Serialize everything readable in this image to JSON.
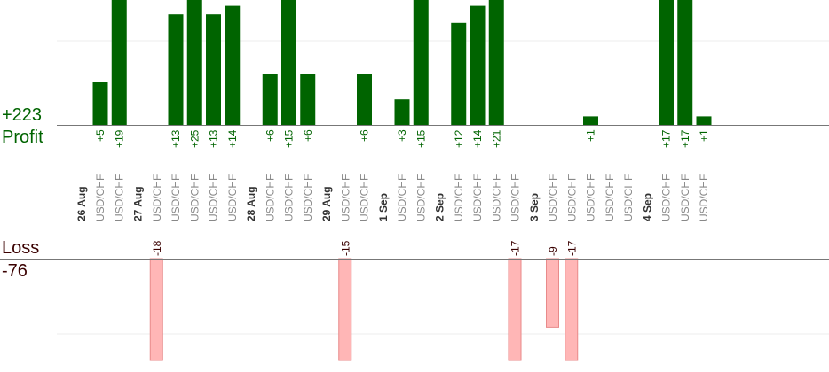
{
  "labels": {
    "profit_total": "+223",
    "profit_label": "Profit",
    "loss_label": "Loss",
    "loss_total": "-76"
  },
  "colors": {
    "profit_bar": "#006400",
    "loss_bar": "#ffb6b6",
    "axis": "#777777",
    "gridline": "#eeeeee",
    "profit_text": "#006400",
    "loss_text": "#3a0000"
  },
  "chart_data": {
    "type": "bar",
    "pair": "USD/CHF",
    "days": [
      {
        "date": "26 Aug",
        "trades": [
          5,
          19
        ]
      },
      {
        "date": "27 Aug",
        "trades": [
          -18,
          13,
          25,
          13,
          14
        ]
      },
      {
        "date": "28 Aug",
        "trades": [
          6,
          15,
          6
        ]
      },
      {
        "date": "29 Aug",
        "trades": [
          -15,
          6
        ]
      },
      {
        "date": "1 Sep",
        "trades": [
          3,
          15
        ]
      },
      {
        "date": "2 Sep",
        "trades": [
          12,
          14,
          21,
          -17
        ]
      },
      {
        "date": "3 Sep",
        "trades": [
          -9,
          -17,
          1,
          null,
          null
        ]
      },
      {
        "date": "4 Sep",
        "trades": [
          17,
          17,
          1
        ]
      }
    ],
    "total_profit": 223,
    "total_loss": -76
  }
}
